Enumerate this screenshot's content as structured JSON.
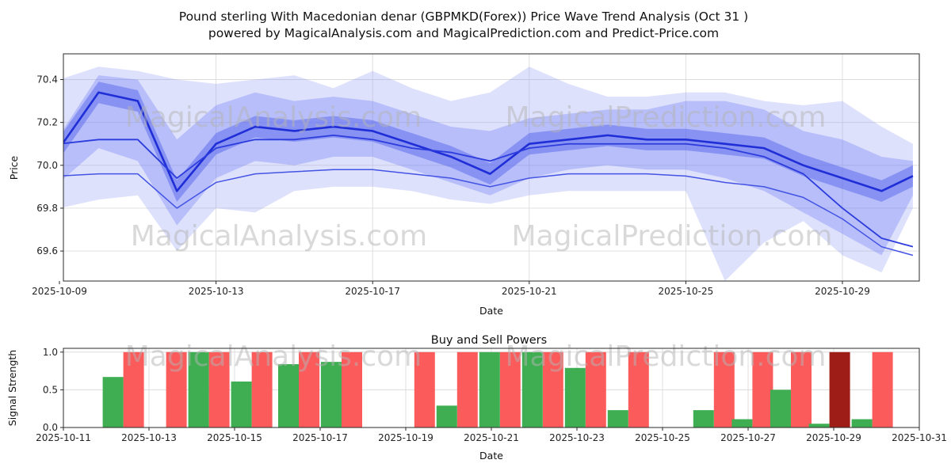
{
  "title": {
    "line1": "Pound sterling With Macedonian denar (GBPMKD(Forex)) Price Wave Trend Analysis (Oct 31 )",
    "line2": "powered by MagicalAnalysis.com and MagicalPrediction.com and Predict-Price.com"
  },
  "watermarks": {
    "analysis": "MagicalAnalysis.com",
    "prediction": "MagicalPrediction.com"
  },
  "chart_data": [
    {
      "type": "area",
      "title": "",
      "ylabel": "Price",
      "xlabel": "Date",
      "ylim": [
        69.46,
        70.52
      ],
      "yticks": [
        "69.6",
        "69.8",
        "70.0",
        "70.2",
        "70.4"
      ],
      "ytick_values": [
        69.6,
        69.8,
        70.0,
        70.2,
        70.4
      ],
      "x_ticks": [
        {
          "day": 0,
          "label": "2025-10-09"
        },
        {
          "day": 4,
          "label": "2025-10-13"
        },
        {
          "day": 8,
          "label": "2025-10-17"
        },
        {
          "day": 12,
          "label": "2025-10-21"
        },
        {
          "day": 16,
          "label": "2025-10-25"
        },
        {
          "day": 20,
          "label": "2025-10-29"
        }
      ],
      "days": [
        0,
        1,
        2,
        3,
        4,
        5,
        6,
        7,
        8,
        9,
        10,
        11,
        12,
        13,
        14,
        15,
        16,
        17,
        18,
        19,
        20,
        21,
        21.8
      ],
      "bands": [
        {
          "name": "outer-wave-band",
          "color": "#8894f5",
          "opacity": 0.28,
          "upper": [
            70.4,
            70.46,
            70.44,
            70.4,
            70.38,
            70.4,
            70.42,
            70.36,
            70.44,
            70.36,
            70.3,
            70.34,
            70.46,
            70.38,
            70.32,
            70.32,
            70.34,
            70.34,
            70.3,
            70.28,
            70.3,
            70.18,
            70.1
          ],
          "lower": [
            69.8,
            69.84,
            69.86,
            69.6,
            69.8,
            69.78,
            69.88,
            69.9,
            69.9,
            69.88,
            69.84,
            69.82,
            69.86,
            69.88,
            69.88,
            69.88,
            69.88,
            69.46,
            69.64,
            69.74,
            69.58,
            69.5,
            69.8
          ]
        },
        {
          "name": "mid-wave-band",
          "color": "#6d7cf2",
          "opacity": 0.34,
          "upper": [
            70.14,
            70.42,
            70.4,
            70.12,
            70.28,
            70.34,
            70.3,
            70.32,
            70.3,
            70.24,
            70.18,
            70.16,
            70.22,
            70.24,
            70.26,
            70.26,
            70.3,
            70.3,
            70.26,
            70.16,
            70.12,
            70.04,
            70.02
          ],
          "lower": [
            69.92,
            70.08,
            70.02,
            69.72,
            69.94,
            70.02,
            70.0,
            70.04,
            70.04,
            69.98,
            69.92,
            69.86,
            69.94,
            69.98,
            70.0,
            69.98,
            69.98,
            69.94,
            69.88,
            69.78,
            69.68,
            69.58,
            69.86
          ]
        },
        {
          "name": "inner-wave-band",
          "color": "#4e5eec",
          "opacity": 0.45,
          "upper": [
            70.13,
            70.39,
            70.35,
            69.93,
            70.15,
            70.23,
            70.21,
            70.23,
            70.21,
            70.15,
            70.09,
            70.01,
            70.15,
            70.17,
            70.19,
            70.17,
            70.17,
            70.15,
            70.13,
            70.05,
            69.99,
            69.93,
            70.0
          ],
          "lower": [
            70.03,
            70.29,
            70.25,
            69.83,
            70.05,
            70.13,
            70.11,
            70.13,
            70.11,
            70.05,
            69.99,
            69.91,
            70.05,
            70.07,
            70.09,
            70.07,
            70.07,
            70.05,
            70.03,
            69.95,
            69.89,
            69.83,
            69.9
          ]
        }
      ],
      "lines": [
        {
          "name": "main-trend-line",
          "color": "#1f2ed6",
          "width": 2.6,
          "values": [
            70.08,
            70.34,
            70.3,
            69.88,
            70.1,
            70.18,
            70.16,
            70.18,
            70.16,
            70.1,
            70.04,
            69.96,
            70.1,
            70.12,
            70.14,
            70.12,
            70.12,
            70.1,
            70.08,
            70.0,
            69.94,
            69.88,
            69.95
          ]
        },
        {
          "name": "secondary-trend-line",
          "color": "#2d3cdc",
          "width": 1.8,
          "values": [
            70.1,
            70.12,
            70.12,
            69.94,
            70.08,
            70.12,
            70.12,
            70.14,
            70.12,
            70.08,
            70.06,
            70.02,
            70.08,
            70.1,
            70.1,
            70.1,
            70.1,
            70.08,
            70.04,
            69.96,
            69.8,
            69.66,
            69.62
          ]
        },
        {
          "name": "lower-trend-line",
          "color": "#4353e4",
          "width": 1.5,
          "values": [
            69.95,
            69.96,
            69.96,
            69.8,
            69.92,
            69.96,
            69.97,
            69.98,
            69.98,
            69.96,
            69.94,
            69.9,
            69.94,
            69.96,
            69.96,
            69.96,
            69.95,
            69.92,
            69.9,
            69.85,
            69.75,
            69.62,
            69.58
          ]
        }
      ]
    },
    {
      "type": "bar",
      "title": "Buy and Sell Powers",
      "ylabel": "Signal Strength",
      "xlabel": "Date",
      "ylim": [
        0,
        1.05
      ],
      "yticks": [
        "0.0",
        "0.5",
        "1.0"
      ],
      "ytick_values": [
        0.0,
        0.5,
        1.0
      ],
      "x_ticks": [
        {
          "day": 0,
          "label": "2025-10-11"
        },
        {
          "day": 2,
          "label": "2025-10-13"
        },
        {
          "day": 4,
          "label": "2025-10-15"
        },
        {
          "day": 6,
          "label": "2025-10-17"
        },
        {
          "day": 8,
          "label": "2025-10-19"
        },
        {
          "day": 10,
          "label": "2025-10-21"
        },
        {
          "day": 12,
          "label": "2025-10-23"
        },
        {
          "day": 14,
          "label": "2025-10-25"
        },
        {
          "day": 16,
          "label": "2025-10-27"
        },
        {
          "day": 18,
          "label": "2025-10-29"
        },
        {
          "day": 20,
          "label": "2025-10-31"
        }
      ],
      "buy_color": "#3fae52",
      "sell_color": "#fb5b5b",
      "sell_color_dark": "#9e1e17",
      "groups": [
        {
          "day": 1.4,
          "buy": 0.67,
          "sell": 1.0
        },
        {
          "day": 2.4,
          "buy": 0.0,
          "sell": 1.0
        },
        {
          "day": 3.4,
          "buy": 1.0,
          "sell": 1.0
        },
        {
          "day": 4.4,
          "buy": 0.61,
          "sell": 1.0
        },
        {
          "day": 5.5,
          "buy": 0.84,
          "sell": 1.0
        },
        {
          "day": 6.5,
          "buy": 0.87,
          "sell": 1.0
        },
        {
          "day": 8.2,
          "buy": 0.0,
          "sell": 1.0
        },
        {
          "day": 9.2,
          "buy": 0.29,
          "sell": 1.0
        },
        {
          "day": 10.2,
          "buy": 1.0,
          "sell": 1.0
        },
        {
          "day": 11.2,
          "buy": 1.0,
          "sell": 1.0
        },
        {
          "day": 12.2,
          "buy": 0.79,
          "sell": 1.0
        },
        {
          "day": 13.2,
          "buy": 0.23,
          "sell": 1.0
        },
        {
          "day": 15.2,
          "buy": 0.23,
          "sell": 1.0
        },
        {
          "day": 16.1,
          "buy": 0.11,
          "sell": 1.0
        },
        {
          "day": 17.0,
          "buy": 0.5,
          "sell": 1.0
        },
        {
          "day": 17.9,
          "buy": 0.05,
          "sell": 1.0,
          "dark": true
        },
        {
          "day": 18.9,
          "buy": 0.11,
          "sell": 1.0
        }
      ]
    }
  ]
}
